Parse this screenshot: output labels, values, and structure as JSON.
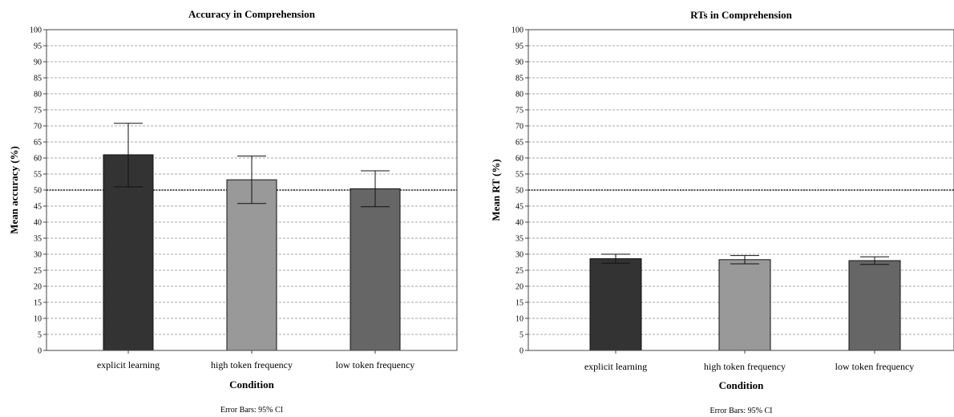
{
  "chart_data": [
    {
      "type": "bar",
      "title": "Accuracy in Comprehension",
      "xlabel": "Condition",
      "ylabel": "Mean accuracy (%)",
      "categories": [
        "explicit learning",
        "high token frequency",
        "low token frequency"
      ],
      "values": [
        61,
        53.2,
        50.4
      ],
      "error_low": [
        51,
        45.8,
        44.8
      ],
      "error_high": [
        70.8,
        60.6,
        56
      ],
      "colors": [
        "#333333",
        "#999999",
        "#666666"
      ],
      "ylim": [
        0,
        100
      ],
      "yticks": [
        0,
        5,
        10,
        15,
        20,
        25,
        30,
        35,
        40,
        45,
        50,
        55,
        60,
        65,
        70,
        75,
        80,
        85,
        90,
        95,
        100
      ],
      "reference_line": 50,
      "grid": true,
      "footnote": "Error Bars: 95% CI"
    },
    {
      "type": "bar",
      "title": "RTs in Comprehension",
      "xlabel": "Condition",
      "ylabel": "Mean RT (%)",
      "categories": [
        "explicit learning",
        "high token frequency",
        "low token frequency"
      ],
      "values": [
        28.6,
        28.3,
        28
      ],
      "error_low": [
        27.2,
        27,
        26.8
      ],
      "error_high": [
        30,
        29.6,
        29.2
      ],
      "colors": [
        "#333333",
        "#999999",
        "#666666"
      ],
      "ylim": [
        0,
        100
      ],
      "yticks": [
        0,
        5,
        10,
        15,
        20,
        25,
        30,
        35,
        40,
        45,
        50,
        55,
        60,
        65,
        70,
        75,
        80,
        85,
        90,
        95,
        100
      ],
      "reference_line": 50,
      "grid": true,
      "footnote": "Error Bars: 95% CI"
    }
  ]
}
